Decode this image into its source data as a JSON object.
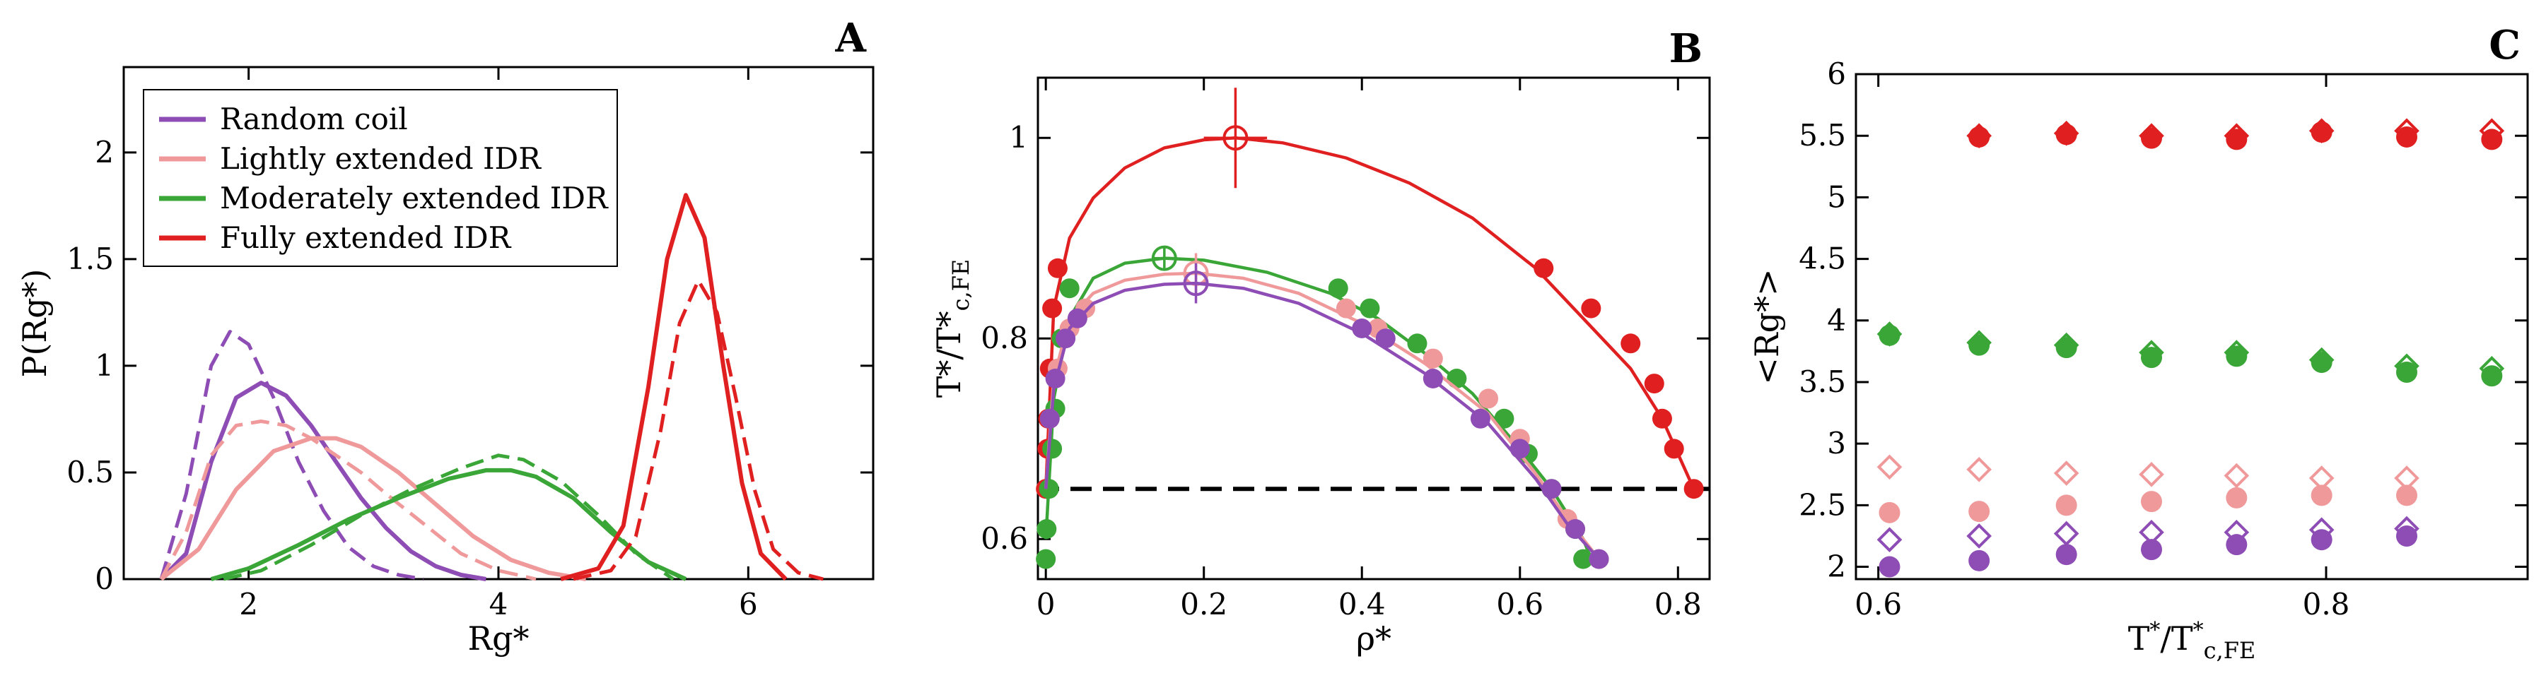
{
  "figure": {
    "colors": {
      "random_coil": "#8e4db5",
      "lightly": "#f0999a",
      "moderately": "#3aa637",
      "fully": "#e02020",
      "black": "#000000"
    },
    "note_linestyles": "solid = simulation/fit, dashed = alternative model"
  },
  "chart_data": [
    {
      "panel": "A",
      "type": "line",
      "title": "A",
      "xlabel": "Rg*",
      "ylabel": "P(Rg*)",
      "xlim": [
        1.0,
        7.0
      ],
      "ylim": [
        0,
        2.4
      ],
      "xticks": [
        2,
        4,
        6
      ],
      "xtick_labels": [
        "2",
        "4",
        "6"
      ],
      "yticks": [
        0,
        0.5,
        1,
        1.5,
        2
      ],
      "ytick_labels": [
        "0",
        "0.5",
        "1",
        "1.5",
        "2"
      ],
      "legend": {
        "position": "top-left",
        "entries": [
          {
            "label": "Random coil",
            "color": "#8e4db5"
          },
          {
            "label": "Lightly extended IDR",
            "color": "#f0999a"
          },
          {
            "label": "Moderately extended IDR",
            "color": "#3aa637"
          },
          {
            "label": "Fully extended IDR",
            "color": "#e02020"
          }
        ]
      },
      "series": [
        {
          "name": "Random coil",
          "color": "#8e4db5",
          "style": "solid",
          "x": [
            1.3,
            1.5,
            1.7,
            1.9,
            2.1,
            2.3,
            2.5,
            2.7,
            2.9,
            3.1,
            3.3,
            3.5,
            3.7,
            3.9
          ],
          "y": [
            0.0,
            0.12,
            0.55,
            0.85,
            0.92,
            0.86,
            0.72,
            0.55,
            0.38,
            0.24,
            0.13,
            0.06,
            0.02,
            0.0
          ]
        },
        {
          "name": "Random coil",
          "color": "#8e4db5",
          "style": "dashed",
          "x": [
            1.3,
            1.5,
            1.7,
            1.85,
            2.0,
            2.2,
            2.4,
            2.6,
            2.8,
            3.0,
            3.2,
            3.4
          ],
          "y": [
            0.0,
            0.4,
            1.0,
            1.16,
            1.1,
            0.85,
            0.55,
            0.32,
            0.15,
            0.06,
            0.02,
            0.0
          ]
        },
        {
          "name": "Lightly extended IDR",
          "color": "#f0999a",
          "style": "solid",
          "x": [
            1.3,
            1.6,
            1.9,
            2.2,
            2.5,
            2.7,
            2.9,
            3.2,
            3.5,
            3.8,
            4.1,
            4.4,
            4.7
          ],
          "y": [
            0.0,
            0.14,
            0.42,
            0.6,
            0.66,
            0.66,
            0.62,
            0.5,
            0.35,
            0.2,
            0.09,
            0.03,
            0.0
          ]
        },
        {
          "name": "Lightly extended IDR",
          "color": "#f0999a",
          "style": "dashed",
          "x": [
            1.3,
            1.5,
            1.7,
            1.9,
            2.1,
            2.3,
            2.5,
            2.7,
            2.9,
            3.1,
            3.4,
            3.7,
            4.0,
            4.3
          ],
          "y": [
            0.0,
            0.22,
            0.58,
            0.72,
            0.74,
            0.72,
            0.66,
            0.58,
            0.5,
            0.4,
            0.26,
            0.12,
            0.04,
            0.0
          ]
        },
        {
          "name": "Moderately extended IDR",
          "color": "#3aa637",
          "style": "solid",
          "x": [
            1.7,
            2.0,
            2.4,
            2.8,
            3.2,
            3.6,
            3.9,
            4.1,
            4.3,
            4.6,
            4.9,
            5.2,
            5.5
          ],
          "y": [
            0.0,
            0.05,
            0.16,
            0.28,
            0.38,
            0.47,
            0.51,
            0.51,
            0.48,
            0.38,
            0.22,
            0.08,
            0.0
          ]
        },
        {
          "name": "Moderately extended IDR",
          "color": "#3aa637",
          "style": "dashed",
          "x": [
            1.8,
            2.1,
            2.5,
            2.9,
            3.3,
            3.7,
            4.0,
            4.2,
            4.5,
            4.8,
            5.1,
            5.4
          ],
          "y": [
            0.0,
            0.04,
            0.16,
            0.3,
            0.42,
            0.52,
            0.58,
            0.56,
            0.46,
            0.3,
            0.12,
            0.0
          ]
        },
        {
          "name": "Fully extended IDR",
          "color": "#e02020",
          "style": "solid",
          "x": [
            4.5,
            4.8,
            5.0,
            5.2,
            5.35,
            5.5,
            5.65,
            5.8,
            5.95,
            6.1,
            6.3
          ],
          "y": [
            0.0,
            0.05,
            0.25,
            0.9,
            1.5,
            1.8,
            1.6,
            1.0,
            0.45,
            0.12,
            0.0
          ]
        },
        {
          "name": "Fully extended IDR",
          "color": "#e02020",
          "style": "dashed",
          "x": [
            4.6,
            4.9,
            5.1,
            5.3,
            5.45,
            5.6,
            5.75,
            5.9,
            6.05,
            6.2,
            6.4,
            6.6
          ],
          "y": [
            0.0,
            0.04,
            0.2,
            0.7,
            1.2,
            1.4,
            1.25,
            0.85,
            0.42,
            0.14,
            0.03,
            0.0
          ]
        }
      ]
    },
    {
      "panel": "B",
      "type": "scatter",
      "title": "B",
      "xlabel": "ρ*",
      "ylabel": "T*/T*c,FE",
      "xlim": [
        -0.01,
        0.84
      ],
      "ylim": [
        0.56,
        1.06
      ],
      "xticks": [
        0,
        0.2,
        0.4,
        0.6,
        0.8
      ],
      "xtick_labels": [
        "0",
        "0.2",
        "0.4",
        "0.6",
        "0.8"
      ],
      "yticks": [
        0.6,
        0.8,
        1
      ],
      "ytick_labels": [
        "0.6",
        "0.8",
        "1"
      ],
      "reference_line": {
        "y": 0.65,
        "style": "dashed",
        "color": "#000000"
      },
      "series": [
        {
          "name": "Fully extended IDR",
          "color": "#e02020",
          "points": [
            [
              0.0,
              0.65
            ],
            [
              0.002,
              0.69
            ],
            [
              0.003,
              0.72
            ],
            [
              0.005,
              0.77
            ],
            [
              0.008,
              0.83
            ],
            [
              0.015,
              0.87
            ],
            [
              0.63,
              0.87
            ],
            [
              0.69,
              0.83
            ],
            [
              0.74,
              0.795
            ],
            [
              0.77,
              0.755
            ],
            [
              0.78,
              0.72
            ],
            [
              0.795,
              0.69
            ],
            [
              0.82,
              0.65
            ]
          ],
          "critical": {
            "x": 0.24,
            "y": 1.0,
            "xerr": 0.04,
            "yerr": 0.05
          },
          "curve_x": [
            0.0,
            0.01,
            0.03,
            0.06,
            0.1,
            0.15,
            0.2,
            0.24,
            0.3,
            0.38,
            0.46,
            0.54,
            0.62,
            0.68,
            0.74,
            0.78,
            0.82
          ],
          "curve_y": [
            0.65,
            0.83,
            0.9,
            0.94,
            0.97,
            0.99,
            0.998,
            1.0,
            0.995,
            0.98,
            0.955,
            0.92,
            0.87,
            0.82,
            0.77,
            0.72,
            0.65
          ]
        },
        {
          "name": "Moderately extended IDR",
          "color": "#3aa637",
          "points": [
            [
              0.0,
              0.58
            ],
            [
              0.001,
              0.61
            ],
            [
              0.004,
              0.65
            ],
            [
              0.008,
              0.69
            ],
            [
              0.012,
              0.73
            ],
            [
              0.02,
              0.8
            ],
            [
              0.03,
              0.85
            ],
            [
              0.37,
              0.85
            ],
            [
              0.41,
              0.83
            ],
            [
              0.47,
              0.795
            ],
            [
              0.52,
              0.76
            ],
            [
              0.58,
              0.72
            ],
            [
              0.61,
              0.685
            ],
            [
              0.64,
              0.65
            ],
            [
              0.67,
              0.61
            ],
            [
              0.68,
              0.58
            ]
          ],
          "critical": {
            "x": 0.15,
            "y": 0.88,
            "xerr": 0.015,
            "yerr": 0.01
          },
          "curve_x": [
            0.0,
            0.01,
            0.03,
            0.06,
            0.1,
            0.15,
            0.2,
            0.28,
            0.36,
            0.42,
            0.48,
            0.54,
            0.6,
            0.64,
            0.68,
            0.69
          ],
          "curve_y": [
            0.6,
            0.74,
            0.82,
            0.86,
            0.875,
            0.88,
            0.878,
            0.866,
            0.845,
            0.82,
            0.785,
            0.745,
            0.69,
            0.65,
            0.6,
            0.58
          ]
        },
        {
          "name": "Lightly extended IDR",
          "color": "#f0999a",
          "points": [
            [
              0.005,
              0.72
            ],
            [
              0.015,
              0.77
            ],
            [
              0.03,
              0.81
            ],
            [
              0.05,
              0.83
            ],
            [
              0.38,
              0.83
            ],
            [
              0.42,
              0.81
            ],
            [
              0.49,
              0.78
            ],
            [
              0.56,
              0.74
            ],
            [
              0.6,
              0.7
            ],
            [
              0.66,
              0.62
            ],
            [
              0.7,
              0.58
            ]
          ],
          "critical": {
            "x": 0.19,
            "y": 0.865,
            "xerr": 0.015,
            "yerr": 0.02
          },
          "curve_x": [
            0.0,
            0.01,
            0.03,
            0.06,
            0.1,
            0.15,
            0.19,
            0.25,
            0.32,
            0.4,
            0.48,
            0.56,
            0.62,
            0.66,
            0.7
          ],
          "curve_y": [
            0.65,
            0.76,
            0.82,
            0.845,
            0.858,
            0.864,
            0.865,
            0.86,
            0.845,
            0.815,
            0.775,
            0.725,
            0.665,
            0.62,
            0.58
          ]
        },
        {
          "name": "Random coil",
          "color": "#8e4db5",
          "points": [
            [
              0.005,
              0.72
            ],
            [
              0.012,
              0.76
            ],
            [
              0.025,
              0.8
            ],
            [
              0.04,
              0.82
            ],
            [
              0.4,
              0.81
            ],
            [
              0.43,
              0.8
            ],
            [
              0.49,
              0.76
            ],
            [
              0.55,
              0.72
            ],
            [
              0.6,
              0.69
            ],
            [
              0.64,
              0.65
            ],
            [
              0.67,
              0.61
            ],
            [
              0.7,
              0.58
            ]
          ],
          "critical": {
            "x": 0.19,
            "y": 0.855,
            "xerr": 0.015,
            "yerr": 0.02
          },
          "curve_x": [
            0.0,
            0.01,
            0.03,
            0.06,
            0.1,
            0.15,
            0.19,
            0.25,
            0.32,
            0.4,
            0.48,
            0.56,
            0.62,
            0.66,
            0.7
          ],
          "curve_y": [
            0.65,
            0.75,
            0.81,
            0.835,
            0.848,
            0.854,
            0.855,
            0.85,
            0.835,
            0.805,
            0.765,
            0.715,
            0.66,
            0.615,
            0.58
          ]
        }
      ]
    },
    {
      "panel": "C",
      "type": "scatter",
      "title": "C",
      "xlabel": "T*/T*c,FE",
      "ylabel": "<Rg*>",
      "xlim": [
        0.59,
        0.89
      ],
      "ylim": [
        1.9,
        6.0
      ],
      "xticks": [
        0.6,
        0.8
      ],
      "xtick_labels": [
        "0.6",
        "0.8"
      ],
      "yticks": [
        2,
        2.5,
        3,
        3.5,
        4,
        4.5,
        5,
        5.5,
        6
      ],
      "ytick_labels": [
        "2",
        "2.5",
        "3",
        "3.5",
        "4",
        "4.5",
        "5",
        "5.5",
        "6"
      ],
      "x": [
        0.605,
        0.645,
        0.684,
        0.722,
        0.76,
        0.798,
        0.836,
        0.874
      ],
      "series": [
        {
          "name": "Fully extended IDR (filled)",
          "color": "#e02020",
          "marker": "circle-filled",
          "values": [
            null,
            5.49,
            5.51,
            5.48,
            5.47,
            5.53,
            5.49,
            5.47
          ]
        },
        {
          "name": "Fully extended IDR (open)",
          "color": "#e02020",
          "marker": "diamond-open",
          "values": [
            null,
            5.5,
            5.52,
            5.5,
            5.5,
            5.54,
            5.54,
            5.54
          ]
        },
        {
          "name": "Moderately extended IDR (filled)",
          "color": "#3aa637",
          "marker": "circle-filled",
          "values": [
            3.88,
            3.8,
            3.78,
            3.7,
            3.71,
            3.66,
            3.58,
            3.55
          ]
        },
        {
          "name": "Moderately extended IDR (open)",
          "color": "#3aa637",
          "marker": "diamond-open",
          "values": [
            3.89,
            3.82,
            3.8,
            3.74,
            3.74,
            3.68,
            3.63,
            3.61
          ]
        },
        {
          "name": "Lightly extended IDR (filled)",
          "color": "#f0999a",
          "marker": "circle-filled",
          "values": [
            2.44,
            2.45,
            2.5,
            2.53,
            2.56,
            2.58,
            2.58,
            null
          ]
        },
        {
          "name": "Lightly extended IDR (open)",
          "color": "#f0999a",
          "marker": "diamond-open",
          "values": [
            2.81,
            2.79,
            2.76,
            2.75,
            2.74,
            2.72,
            2.72,
            null
          ]
        },
        {
          "name": "Random coil (filled)",
          "color": "#8e4db5",
          "marker": "circle-filled",
          "values": [
            2.0,
            2.05,
            2.1,
            2.14,
            2.18,
            2.22,
            2.25,
            null
          ]
        },
        {
          "name": "Random coil (open)",
          "color": "#8e4db5",
          "marker": "diamond-open",
          "values": [
            2.22,
            2.25,
            2.27,
            2.28,
            2.28,
            2.3,
            2.31,
            null
          ]
        }
      ]
    }
  ]
}
